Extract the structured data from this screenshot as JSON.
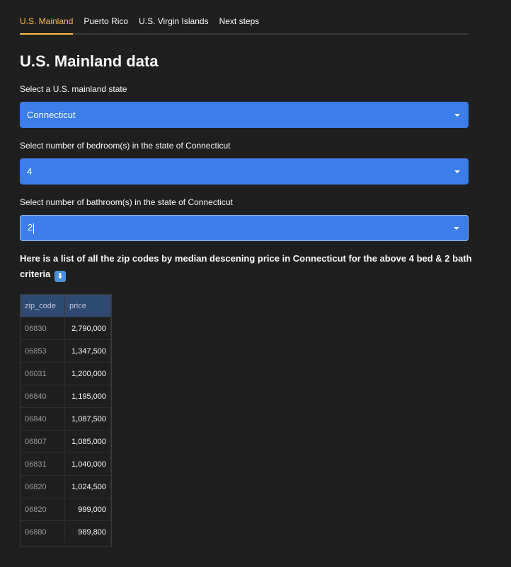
{
  "tabs": [
    {
      "label": "U.S. Mainland",
      "active": true
    },
    {
      "label": "Puerto Rico",
      "active": false
    },
    {
      "label": "U.S. Virgin Islands",
      "active": false
    },
    {
      "label": "Next steps",
      "active": false
    }
  ],
  "page_title": "U.S. Mainland data",
  "state_select": {
    "label": "Select a U.S. mainland state",
    "value": "Connecticut"
  },
  "bedroom_select": {
    "label": "Select number of bedroom(s) in the state of Connecticut",
    "value": "4"
  },
  "bathroom_select": {
    "label": "Select number of bathroom(s) in the state of Connecticut",
    "value": "2"
  },
  "description": "Here is a list of all the zip codes by median descening price in Connecticut for the above 4 bed & 2 bath criteria",
  "description_icon": "down-arrow-emoji",
  "table": {
    "headers": [
      "zip_code",
      "price"
    ],
    "rows": [
      {
        "zip_code": "06830",
        "price": "2,790,000"
      },
      {
        "zip_code": "06853",
        "price": "1,347,500"
      },
      {
        "zip_code": "06031",
        "price": "1,200,000"
      },
      {
        "zip_code": "06840",
        "price": "1,195,000"
      },
      {
        "zip_code": "06840",
        "price": "1,087,500"
      },
      {
        "zip_code": "06807",
        "price": "1,085,000"
      },
      {
        "zip_code": "06831",
        "price": "1,040,000"
      },
      {
        "zip_code": "06820",
        "price": "1,024,500"
      },
      {
        "zip_code": "06820",
        "price": "999,000"
      },
      {
        "zip_code": "06880",
        "price": "989,800"
      }
    ]
  },
  "colors": {
    "background": "#1f1f1f",
    "accent_tab": "#ffb84d",
    "select_background": "#3b7de9",
    "table_header": "#2f4a70"
  }
}
